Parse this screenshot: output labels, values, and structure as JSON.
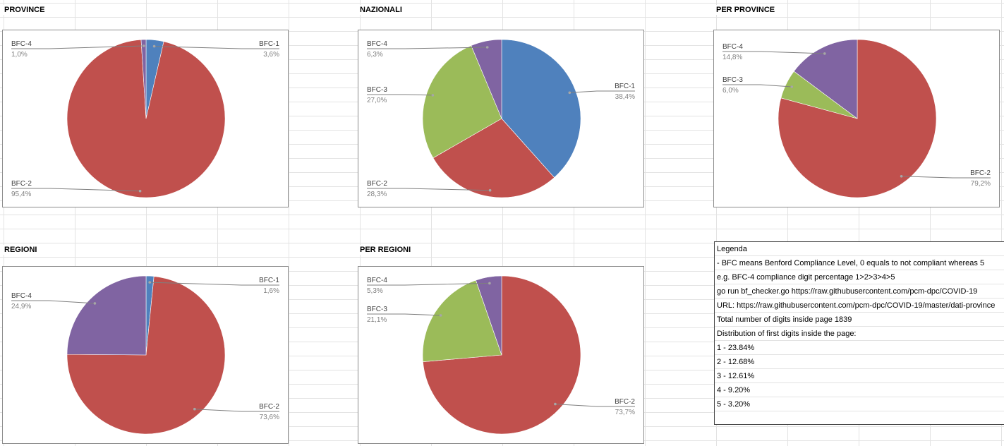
{
  "chart_data": [
    {
      "type": "pie",
      "title": "PROVINCE",
      "slices": [
        {
          "name": "BFC-1",
          "value": 3.6,
          "label": "3,6%",
          "color": "#4f81bd"
        },
        {
          "name": "BFC-2",
          "value": 95.4,
          "label": "95,4%",
          "color": "#c0504d"
        },
        {
          "name": "BFC-4",
          "value": 1.0,
          "label": "1,0%",
          "color": "#8064a2"
        }
      ]
    },
    {
      "type": "pie",
      "title": "NAZIONALI",
      "slices": [
        {
          "name": "BFC-1",
          "value": 38.4,
          "label": "38,4%",
          "color": "#4f81bd"
        },
        {
          "name": "BFC-2",
          "value": 28.3,
          "label": "28,3%",
          "color": "#c0504d"
        },
        {
          "name": "BFC-3",
          "value": 27.0,
          "label": "27,0%",
          "color": "#9bbb59"
        },
        {
          "name": "BFC-4",
          "value": 6.3,
          "label": "6,3%",
          "color": "#8064a2"
        }
      ]
    },
    {
      "type": "pie",
      "title": "PER PROVINCE",
      "slices": [
        {
          "name": "BFC-2",
          "value": 79.2,
          "label": "79,2%",
          "color": "#c0504d"
        },
        {
          "name": "BFC-3",
          "value": 6.0,
          "label": "6,0%",
          "color": "#9bbb59"
        },
        {
          "name": "BFC-4",
          "value": 14.8,
          "label": "14,8%",
          "color": "#8064a2"
        }
      ]
    },
    {
      "type": "pie",
      "title": "REGIONI",
      "slices": [
        {
          "name": "BFC-1",
          "value": 1.6,
          "label": "1,6%",
          "color": "#4f81bd"
        },
        {
          "name": "BFC-2",
          "value": 73.6,
          "label": "73,6%",
          "color": "#c0504d"
        },
        {
          "name": "BFC-4",
          "value": 24.9,
          "label": "24,9%",
          "color": "#8064a2"
        }
      ]
    },
    {
      "type": "pie",
      "title": "PER REGIONI",
      "slices": [
        {
          "name": "BFC-2",
          "value": 73.7,
          "label": "73,7%",
          "color": "#c0504d"
        },
        {
          "name": "BFC-3",
          "value": 21.1,
          "label": "21,1%",
          "color": "#9bbb59"
        },
        {
          "name": "BFC-4",
          "value": 5.3,
          "label": "5,3%",
          "color": "#8064a2"
        }
      ]
    }
  ],
  "legend": {
    "title": "Legenda",
    "lines": [
      "- BFC means Benford Compliance Level, 0 equals to not compliant whereas 5",
      "e.g. BFC-4 compliance digit percentage 1>2>3>4>5",
      "go run bf_checker.go https://raw.githubusercontent.com/pcm-dpc/COVID-19",
      "URL: https://raw.githubusercontent.com/pcm-dpc/COVID-19/master/dati-province",
      "Total number of digits inside page  1839",
      "Distribution of first digits inside the page:",
      "1 -  23.84%",
      "2 -  12.68%",
      "3 -  12.61%",
      "4 -  9.20%",
      "5 -  3.20%"
    ]
  }
}
